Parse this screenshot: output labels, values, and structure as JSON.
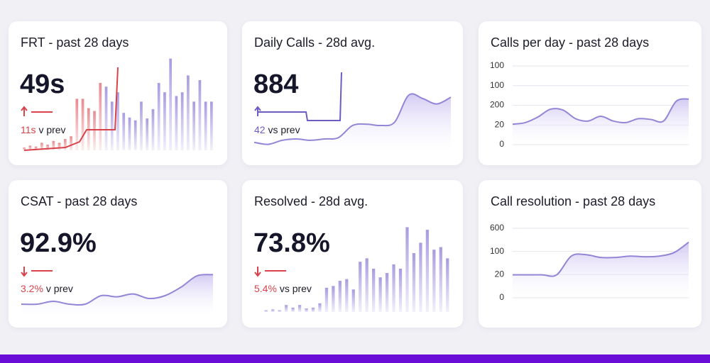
{
  "cards": [
    {
      "title": "FRT - past 28 days",
      "value": "49s",
      "delta": "11s",
      "delta_suffix": "v prev",
      "trend": "up",
      "delta_color": "#d9424a",
      "chart": {
        "type": "bar",
        "ylim": [
          0,
          100
        ],
        "series": [
          {
            "color": "#e98a8f",
            "values": [
              3,
              5,
              4,
              8,
              6,
              10,
              8,
              12,
              15,
              55,
              55,
              45,
              42,
              72
            ]
          },
          {
            "color": "#a99be0",
            "values": [
              68,
              52,
              62,
              40,
              35,
              32,
              52,
              34,
              44,
              72,
              62,
              98,
              58,
              62,
              80,
              52,
              75,
              52,
              52
            ]
          }
        ]
      }
    },
    {
      "title": "Daily Calls - 28d avg.",
      "value": "884",
      "delta": "42",
      "delta_suffix": "vs prev",
      "trend": "up",
      "delta_color": "#6f5bc4",
      "chart": {
        "type": "line",
        "ylim": [
          0,
          100
        ],
        "values": [
          15,
          12,
          18,
          20,
          18,
          20,
          22,
          40,
          42,
          40,
          45,
          85,
          80,
          72,
          82
        ]
      }
    },
    {
      "title": "Calls per day - past 28 days",
      "axis_labels": [
        100,
        100,
        200,
        20,
        0
      ],
      "chart": {
        "type": "line",
        "ylim": [
          0,
          100
        ],
        "values": [
          26,
          28,
          35,
          45,
          44,
          33,
          30,
          36,
          30,
          28,
          33,
          32,
          30,
          55,
          58
        ]
      }
    },
    {
      "title": "CSAT - past 28 days",
      "value": "92.9%",
      "delta": "3.2%",
      "delta_suffix": "v prev",
      "trend": "down",
      "delta_color": "#d9424a",
      "chart": {
        "type": "line",
        "ylim": [
          0,
          100
        ],
        "values": [
          20,
          20,
          25,
          20,
          20,
          35,
          33,
          38,
          30,
          35,
          50,
          70,
          72
        ]
      }
    },
    {
      "title": "Resolved - 28d avg.",
      "value": "73.8%",
      "delta": "5.4%",
      "delta_suffix": "vs prev",
      "trend": "down",
      "delta_color": "#d9424a",
      "chart": {
        "type": "bar",
        "ylim": [
          0,
          100
        ],
        "series": [
          {
            "color": "#a99be0",
            "values": [
              2,
              3,
              2,
              8,
              5,
              8,
              4,
              5,
              10,
              28,
              30,
              36,
              38,
              26,
              58,
              62,
              50,
              40,
              45,
              55,
              50,
              98,
              68,
              80,
              95,
              72,
              75,
              62
            ]
          }
        ]
      }
    },
    {
      "title": "Call resolution - past 28 days",
      "axis_labels": [
        600,
        100,
        20,
        0
      ],
      "chart": {
        "type": "line",
        "ylim": [
          0,
          100
        ],
        "values": [
          33,
          33,
          33,
          33,
          60,
          62,
          58,
          58,
          60,
          59,
          60,
          65,
          80
        ]
      }
    }
  ]
}
